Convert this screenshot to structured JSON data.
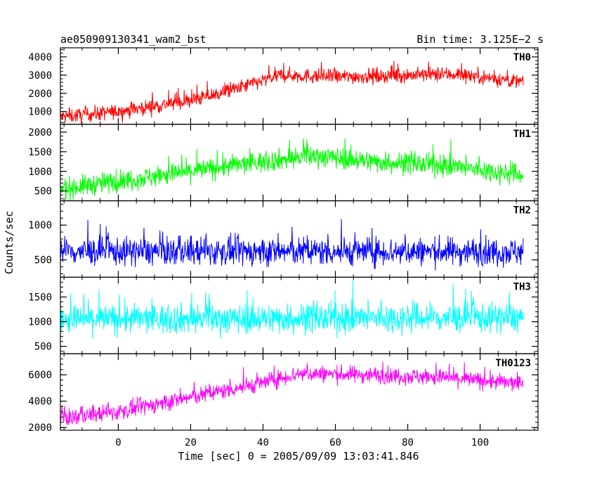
{
  "header": {
    "title": "ae050909130341_wam2_bst",
    "bin_time": "Bin time: 3.125E−2 s"
  },
  "chart_data": {
    "type": "line",
    "xlabel": "Time [sec] 0 = 2005/09/09 13:03:41.846",
    "ylabel": "Counts/sec",
    "xlim": [
      -16,
      116
    ],
    "x_range": [
      -16,
      112
    ],
    "x_ticks": [
      "0",
      "20",
      "40",
      "60",
      "80",
      "100"
    ],
    "x_tick_values": [
      0,
      20,
      40,
      60,
      80,
      100
    ],
    "panels": [
      {
        "name": "TH0",
        "color": "#ff0000",
        "ylim": [
          300,
          4500
        ],
        "y_ticks": [
          "1000",
          "2000",
          "3000",
          "4000"
        ],
        "y_tick_values": [
          1000,
          2000,
          3000,
          4000
        ],
        "trend": [
          [
            -16,
            700
          ],
          [
            0,
            1000
          ],
          [
            20,
            1600
          ],
          [
            30,
            2100
          ],
          [
            40,
            2700
          ],
          [
            45,
            3000
          ],
          [
            60,
            2900
          ],
          [
            80,
            3000
          ],
          [
            95,
            3050
          ],
          [
            112,
            2600
          ]
        ],
        "spread": 450,
        "bin_seconds": 0.03125
      },
      {
        "name": "TH1",
        "color": "#00ff00",
        "ylim": [
          250,
          2200
        ],
        "y_ticks": [
          "500",
          "1000",
          "1500",
          "2000"
        ],
        "y_tick_values": [
          500,
          1000,
          1500,
          2000
        ],
        "trend": [
          [
            -16,
            550
          ],
          [
            0,
            750
          ],
          [
            20,
            1000
          ],
          [
            40,
            1250
          ],
          [
            55,
            1400
          ],
          [
            70,
            1250
          ],
          [
            90,
            1150
          ],
          [
            112,
            900
          ]
        ],
        "spread": 300,
        "bin_seconds": 0.03125
      },
      {
        "name": "TH2",
        "color": "#0000ff",
        "ylim": [
          250,
          1350
        ],
        "y_ticks": [
          "500",
          "1000"
        ],
        "y_tick_values": [
          500,
          1000
        ],
        "trend": [
          [
            -16,
            620
          ],
          [
            112,
            620
          ]
        ],
        "spread": 220,
        "bin_seconds": 0.03125
      },
      {
        "name": "TH3",
        "color": "#00ffff",
        "ylim": [
          350,
          1900
        ],
        "y_ticks": [
          "500",
          "1000",
          "1500"
        ],
        "y_tick_values": [
          500,
          1000,
          1500
        ],
        "trend": [
          [
            -16,
            1050
          ],
          [
            112,
            1080
          ]
        ],
        "spread": 330,
        "bin_seconds": 0.03125
      },
      {
        "name": "TH0123",
        "color": "#ff00ff",
        "ylim": [
          1800,
          7600
        ],
        "y_ticks": [
          "2000",
          "4000",
          "6000"
        ],
        "y_tick_values": [
          2000,
          4000,
          6000
        ],
        "trend": [
          [
            -16,
            2700
          ],
          [
            0,
            3200
          ],
          [
            20,
            4300
          ],
          [
            40,
            5400
          ],
          [
            50,
            6100
          ],
          [
            70,
            6000
          ],
          [
            90,
            5800
          ],
          [
            112,
            5300
          ]
        ],
        "spread": 700,
        "bin_seconds": 0.03125
      }
    ]
  }
}
